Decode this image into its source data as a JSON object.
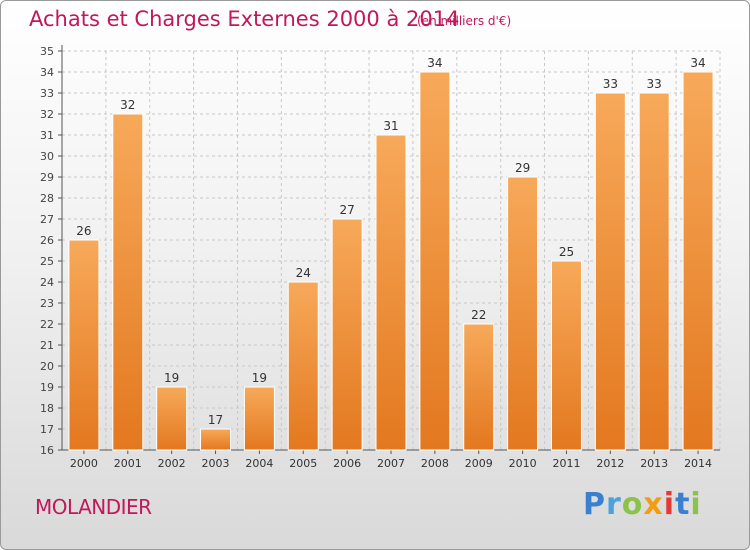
{
  "header": {
    "title": "Achats et Charges Externes 2000 à 2014",
    "subtitle": "(en milliers d'€)"
  },
  "footer": {
    "commune": "MOLANDIER",
    "logo_text": "Proxiti"
  },
  "colors": {
    "bar_top": "#f7a95a",
    "bar_bottom": "#e3781f",
    "title": "#c2185b",
    "grid": "#c8c8c8"
  },
  "chart_data": {
    "type": "bar",
    "title": "Achats et Charges Externes 2000 à 2014",
    "subtitle": "(en milliers d'€)",
    "xlabel": "",
    "ylabel": "",
    "categories": [
      "2000",
      "2001",
      "2002",
      "2003",
      "2004",
      "2005",
      "2006",
      "2007",
      "2008",
      "2009",
      "2010",
      "2011",
      "2012",
      "2013",
      "2014"
    ],
    "values": [
      26,
      32,
      19,
      17,
      19,
      24,
      27,
      31,
      34,
      22,
      29,
      25,
      33,
      33,
      34
    ],
    "ylim": [
      16,
      35
    ],
    "yticks": [
      16,
      17,
      18,
      19,
      20,
      21,
      22,
      23,
      24,
      25,
      26,
      27,
      28,
      29,
      30,
      31,
      32,
      33,
      34,
      35
    ],
    "grid": true,
    "legend": "none"
  }
}
